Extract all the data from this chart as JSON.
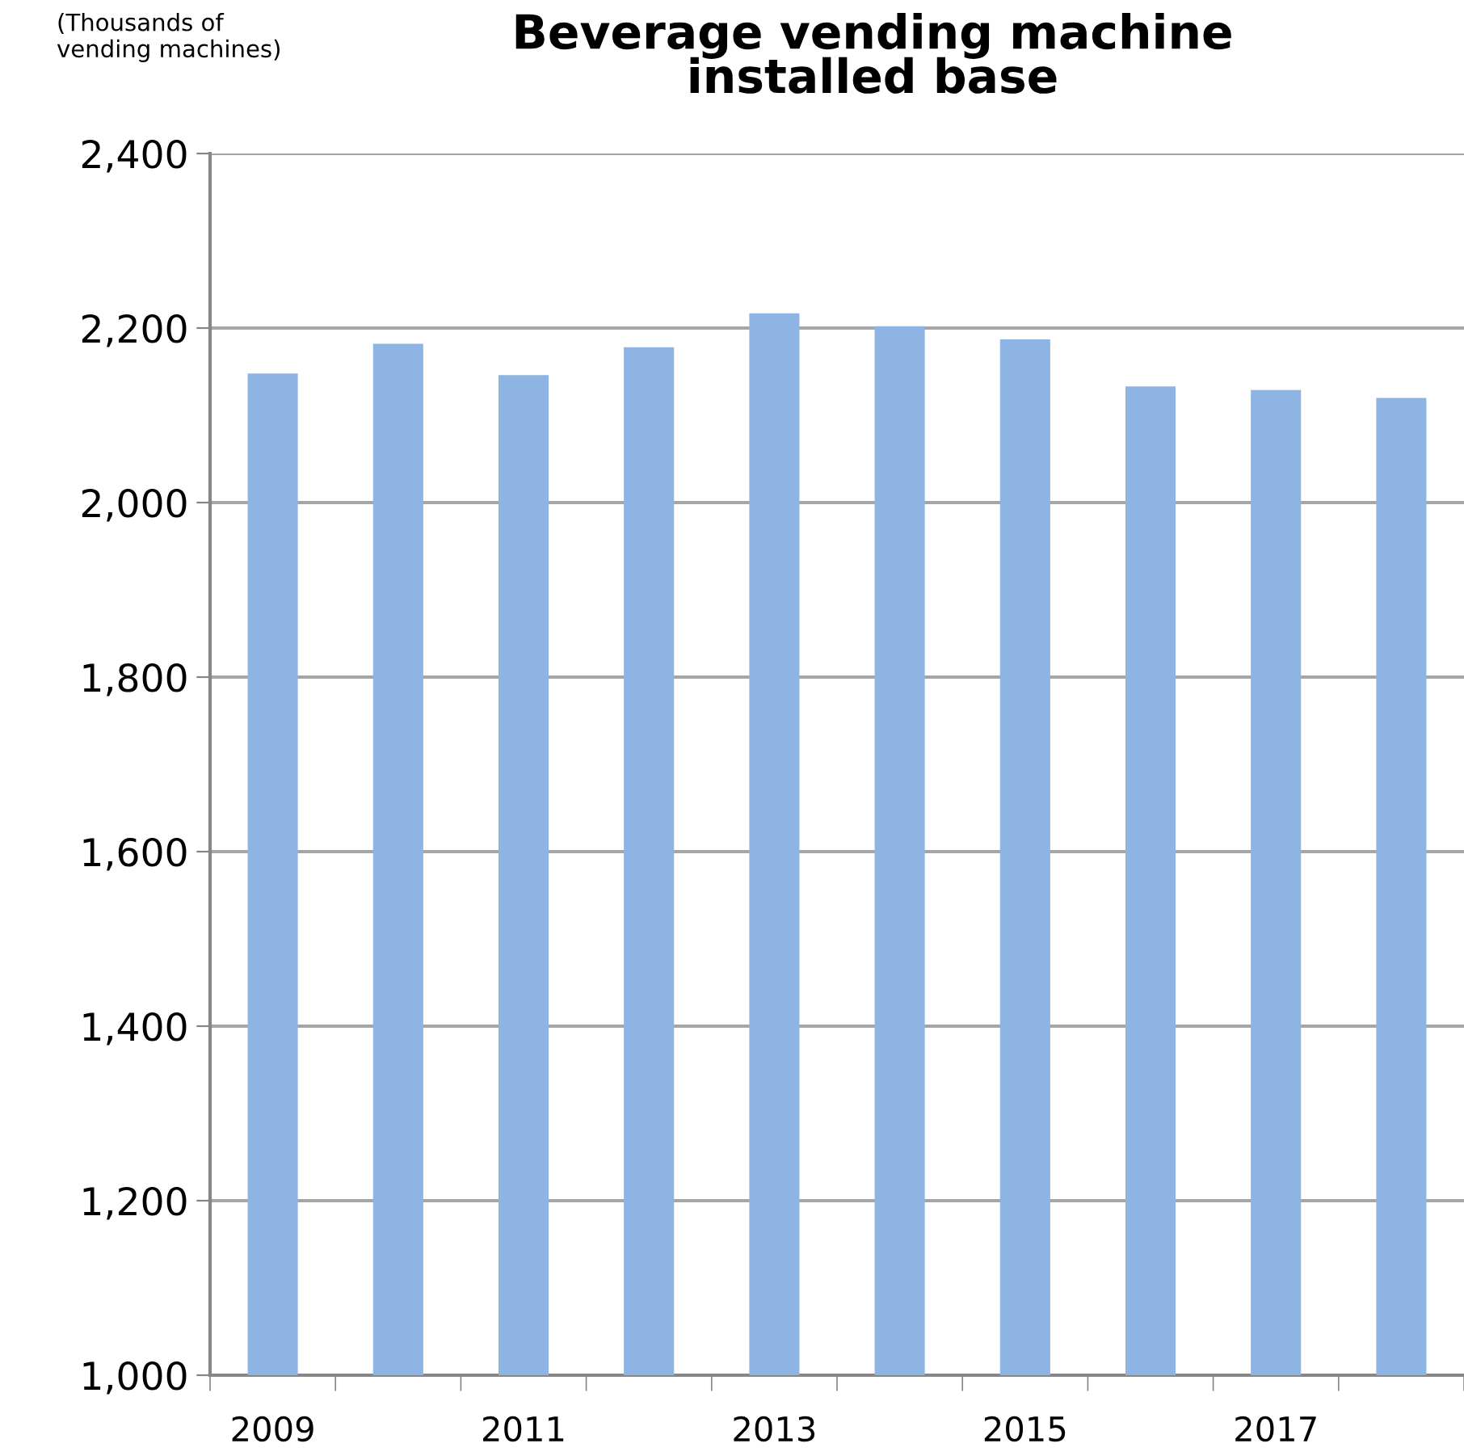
{
  "chart_data": {
    "type": "bar",
    "title": "Beverage vending machine\ninstalled base",
    "ylabel": "(Thousands of\nvending machines)",
    "categories": [
      "2009",
      null,
      "2011",
      null,
      "2013",
      null,
      "2015",
      null,
      "2017",
      null
    ],
    "series": [
      {
        "color": "#8eb4e3",
        "values": [
          2148,
          2182,
          2146,
          2178,
          2217,
          2202,
          2187,
          2133,
          2129,
          2120
        ]
      }
    ],
    "ylim": [
      1000,
      2400
    ],
    "yticks": [
      {
        "value": 1000,
        "label": "1,000"
      },
      {
        "value": 1200,
        "label": "1,200"
      },
      {
        "value": 1400,
        "label": "1,400"
      },
      {
        "value": 1600,
        "label": "1,600"
      },
      {
        "value": 1800,
        "label": "1,800"
      },
      {
        "value": 2000,
        "label": "2,000"
      },
      {
        "value": 2200,
        "label": "2,200"
      },
      {
        "value": 2400,
        "label": "2,400"
      }
    ],
    "grid": "y",
    "legend": false
  }
}
